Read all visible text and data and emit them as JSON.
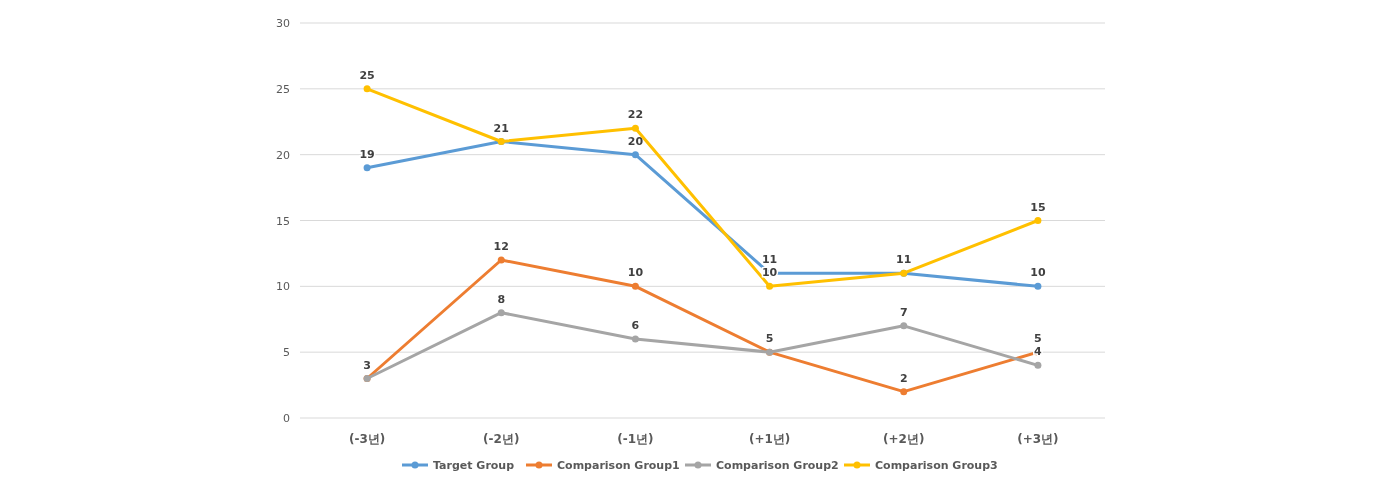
{
  "chart_data": {
    "type": "line",
    "categories": [
      "(-3년)",
      "(-2년)",
      "(-1년)",
      "(+1년)",
      "(+2년)",
      "(+3년)"
    ],
    "series": [
      {
        "name": "Target Group",
        "color": "#5b9bd5",
        "values": [
          19,
          21,
          20,
          11,
          11,
          10
        ],
        "value_labels": [
          "19",
          "21",
          "20",
          "11",
          "11",
          "10"
        ]
      },
      {
        "name": "Comparison Group1",
        "color": "#ed7d31",
        "values": [
          3,
          12,
          10,
          5,
          2,
          5
        ],
        "value_labels": [
          "3",
          "12",
          "10",
          "5",
          "2",
          "5"
        ]
      },
      {
        "name": "Comparison Group2",
        "color": "#a5a5a5",
        "values": [
          3,
          8,
          6,
          5,
          7,
          4
        ],
        "value_labels": [
          null,
          "8",
          "6",
          null,
          "7",
          "4"
        ]
      },
      {
        "name": "Comparison Group3",
        "color": "#ffc000",
        "values": [
          25,
          21,
          22,
          10,
          11,
          15
        ],
        "value_labels": [
          "25",
          null,
          "22",
          "10",
          null,
          "15"
        ]
      }
    ],
    "ylim": [
      0,
      30
    ],
    "yticks": [
      0,
      5,
      10,
      15,
      20,
      25,
      30
    ],
    "grid": "y",
    "legend": "bottom",
    "marker": "circle",
    "line_style": "solid"
  }
}
